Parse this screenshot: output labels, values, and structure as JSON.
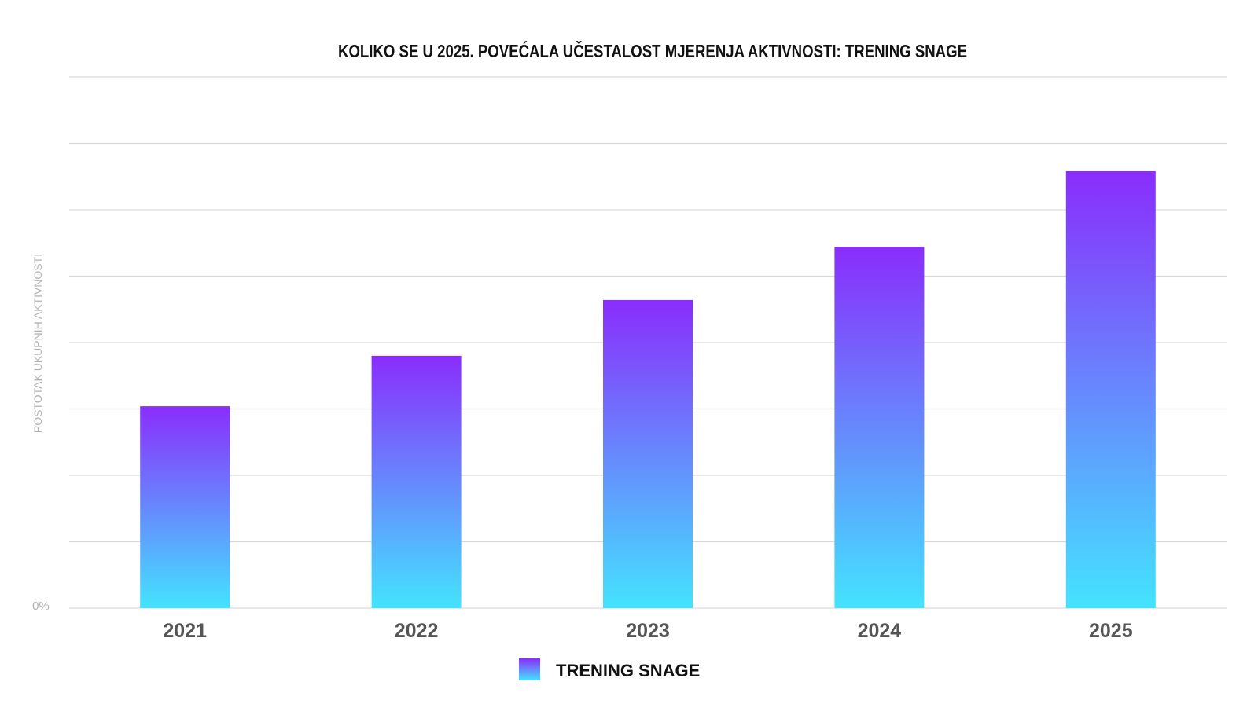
{
  "chart_data": {
    "type": "bar",
    "title": "KOLIKO SE U 2025. POVEĆALA UČESTALOST MJERENJA AKTIVNOSTI: TRENING SNAGE",
    "ylabel": "POSTOTAK UKUPNIH AKTIVNOSTI",
    "xlabel": "",
    "y_tick_labels": [
      "0%"
    ],
    "categories": [
      "2021",
      "2022",
      "2023",
      "2024",
      "2025"
    ],
    "series": [
      {
        "name": "TRENING SNAGE",
        "values": [
          30.4,
          38.0,
          46.4,
          54.4,
          65.8
        ]
      }
    ],
    "ylim": [
      0,
      80
    ],
    "grid": true,
    "legend_position": "bottom-center",
    "colors": {
      "bar_top": "#8a2dfc",
      "bar_bottom": "#44e3fe",
      "grid": "#d9d9d9",
      "axis_text": "#555555",
      "ylabel_text": "#b3b3b3"
    }
  }
}
